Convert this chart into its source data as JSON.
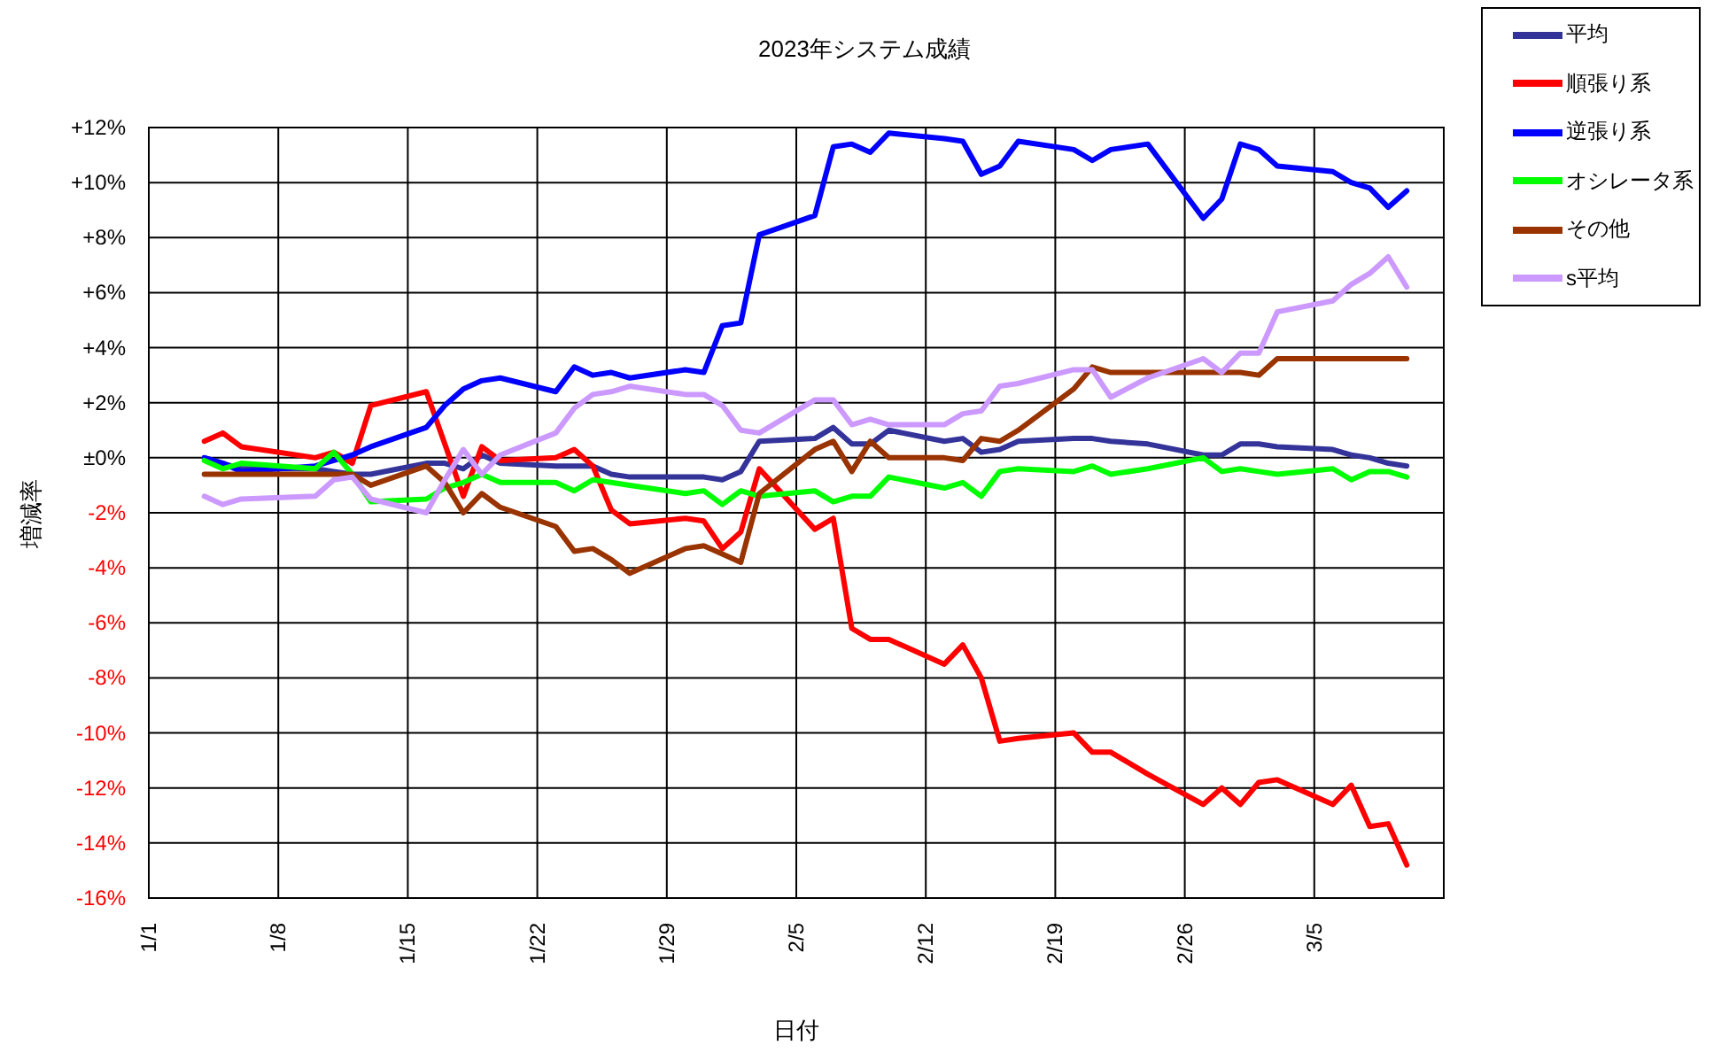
{
  "chart_data": {
    "type": "line",
    "title": "2023年システム成績",
    "xlabel": "日付",
    "ylabel": "増減率",
    "x": [
      "2023-01-04",
      "2023-01-05",
      "2023-01-06",
      "2023-01-10",
      "2023-01-11",
      "2023-01-12",
      "2023-01-13",
      "2023-01-16",
      "2023-01-17",
      "2023-01-18",
      "2023-01-19",
      "2023-01-20",
      "2023-01-23",
      "2023-01-24",
      "2023-01-25",
      "2023-01-26",
      "2023-01-27",
      "2023-01-30",
      "2023-01-31",
      "2023-02-01",
      "2023-02-02",
      "2023-02-03",
      "2023-02-06",
      "2023-02-07",
      "2023-02-08",
      "2023-02-09",
      "2023-02-10",
      "2023-02-13",
      "2023-02-14",
      "2023-02-15",
      "2023-02-16",
      "2023-02-17",
      "2023-02-20",
      "2023-02-21",
      "2023-02-22",
      "2023-02-24",
      "2023-02-27",
      "2023-02-28",
      "2023-03-01",
      "2023-03-02",
      "2023-03-03",
      "2023-03-06",
      "2023-03-07",
      "2023-03-08",
      "2023-03-09",
      "2023-03-10"
    ],
    "series": [
      {
        "name": "平均",
        "color": "#333399",
        "values": [
          0,
          -0.2,
          -0.4,
          -0.4,
          -0.5,
          -0.6,
          -0.6,
          -0.2,
          -0.2,
          -0.4,
          0.1,
          -0.2,
          -0.3,
          -0.3,
          -0.3,
          -0.6,
          -0.7,
          -0.7,
          -0.7,
          -0.8,
          -0.5,
          0.6,
          0.7,
          1.1,
          0.5,
          0.5,
          1.0,
          0.6,
          0.7,
          0.2,
          0.3,
          0.6,
          0.7,
          0.7,
          0.6,
          0.5,
          0.1,
          0.1,
          0.5,
          0.5,
          0.4,
          0.3,
          0.1,
          0.0,
          -0.2,
          -0.3
        ]
      },
      {
        "name": "順張り系",
        "color": "#ff0000",
        "values": [
          0.6,
          0.9,
          0.4,
          0.0,
          0.2,
          -0.2,
          1.9,
          2.4,
          0.5,
          -1.4,
          0.4,
          -0.1,
          0.0,
          0.3,
          -0.3,
          -1.9,
          -2.4,
          -2.2,
          -2.3,
          -3.3,
          -2.7,
          -0.4,
          -2.6,
          -2.2,
          -6.2,
          -6.6,
          -6.6,
          -7.5,
          -6.8,
          -8.0,
          -10.3,
          -10.2,
          -10.0,
          -10.7,
          -10.7,
          -11.5,
          -12.6,
          -12.0,
          -12.6,
          -11.8,
          -11.7,
          -12.6,
          -11.9,
          -13.4,
          -13.3,
          -14.8
        ]
      },
      {
        "name": "逆張り系",
        "color": "#0000ff",
        "values": [
          0.0,
          -0.2,
          -0.5,
          -0.3,
          -0.1,
          0.1,
          0.4,
          1.1,
          1.9,
          2.5,
          2.8,
          2.9,
          2.4,
          3.3,
          3.0,
          3.1,
          2.9,
          3.2,
          3.1,
          4.8,
          4.9,
          8.1,
          8.8,
          11.3,
          11.4,
          11.1,
          11.8,
          11.6,
          11.5,
          10.3,
          10.6,
          11.5,
          11.2,
          10.8,
          11.2,
          11.4,
          8.7,
          9.4,
          11.4,
          11.2,
          10.6,
          10.4,
          10.0,
          9.8,
          9.1,
          9.7
        ]
      },
      {
        "name": "オシレータ系",
        "color": "#00ff00",
        "values": [
          -0.1,
          -0.4,
          -0.2,
          -0.4,
          0.2,
          -0.6,
          -1.6,
          -1.5,
          -1.1,
          -0.9,
          -0.6,
          -0.9,
          -0.9,
          -1.2,
          -0.8,
          -0.9,
          -1.0,
          -1.3,
          -1.2,
          -1.7,
          -1.2,
          -1.4,
          -1.2,
          -1.6,
          -1.4,
          -1.4,
          -0.7,
          -1.1,
          -0.9,
          -1.4,
          -0.5,
          -0.4,
          -0.5,
          -0.3,
          -0.6,
          -0.4,
          0.0,
          -0.5,
          -0.4,
          -0.5,
          -0.6,
          -0.4,
          -0.8,
          -0.5,
          -0.5,
          -0.7
        ]
      },
      {
        "name": "その他",
        "color": "#993300",
        "values": [
          -0.6,
          -0.6,
          -0.6,
          -0.6,
          -0.6,
          -0.6,
          -1.0,
          -0.3,
          -0.9,
          -2.0,
          -1.3,
          -1.8,
          -2.5,
          -3.4,
          -3.3,
          -3.7,
          -4.2,
          -3.3,
          -3.2,
          -3.5,
          -3.8,
          -1.3,
          0.3,
          0.6,
          -0.5,
          0.6,
          0.0,
          0.0,
          -0.1,
          0.7,
          0.6,
          1.0,
          2.5,
          3.3,
          3.1,
          3.1,
          3.1,
          3.1,
          3.1,
          3.0,
          3.6,
          3.6,
          3.6,
          3.6,
          3.6,
          3.6
        ]
      },
      {
        "name": "s平均",
        "color": "#cc99ff",
        "values": [
          -1.4,
          -1.7,
          -1.5,
          -1.4,
          -0.8,
          -0.7,
          -1.5,
          -2.0,
          -0.8,
          0.3,
          -0.6,
          0.1,
          0.9,
          1.8,
          2.3,
          2.4,
          2.6,
          2.3,
          2.3,
          1.9,
          1.0,
          0.9,
          2.1,
          2.1,
          1.2,
          1.4,
          1.2,
          1.2,
          1.6,
          1.7,
          2.6,
          2.7,
          3.2,
          3.2,
          2.2,
          2.9,
          3.6,
          3.1,
          3.8,
          3.8,
          5.3,
          5.7,
          6.3,
          6.7,
          7.3,
          6.2
        ]
      }
    ],
    "xlim": [
      "2023-01-01",
      "2023-03-12"
    ],
    "xticks": [
      {
        "value": "2023-01-01",
        "label": "1/1"
      },
      {
        "value": "2023-01-08",
        "label": "1/8"
      },
      {
        "value": "2023-01-15",
        "label": "1/15"
      },
      {
        "value": "2023-01-22",
        "label": "1/22"
      },
      {
        "value": "2023-01-29",
        "label": "1/29"
      },
      {
        "value": "2023-02-05",
        "label": "2/5"
      },
      {
        "value": "2023-02-12",
        "label": "2/12"
      },
      {
        "value": "2023-02-19",
        "label": "2/19"
      },
      {
        "value": "2023-02-26",
        "label": "2/26"
      },
      {
        "value": "2023-03-05",
        "label": "3/5"
      }
    ],
    "ylim": [
      -16,
      12
    ],
    "yticks": [
      {
        "value": -16,
        "label": "-16%"
      },
      {
        "value": -14,
        "label": "-14%"
      },
      {
        "value": -12,
        "label": "-12%"
      },
      {
        "value": -10,
        "label": "-10%"
      },
      {
        "value": -8,
        "label": "-8%"
      },
      {
        "value": -6,
        "label": "-6%"
      },
      {
        "value": -4,
        "label": "-4%"
      },
      {
        "value": -2,
        "label": "-2%"
      },
      {
        "value": 0,
        "label": "±0%"
      },
      {
        "value": 2,
        "label": "+2%"
      },
      {
        "value": 4,
        "label": "+4%"
      },
      {
        "value": 6,
        "label": "+6%"
      },
      {
        "value": 8,
        "label": "+8%"
      },
      {
        "value": 10,
        "label": "+10%"
      },
      {
        "value": 12,
        "label": "+12%"
      }
    ],
    "grid": true,
    "legend": "top right"
  }
}
